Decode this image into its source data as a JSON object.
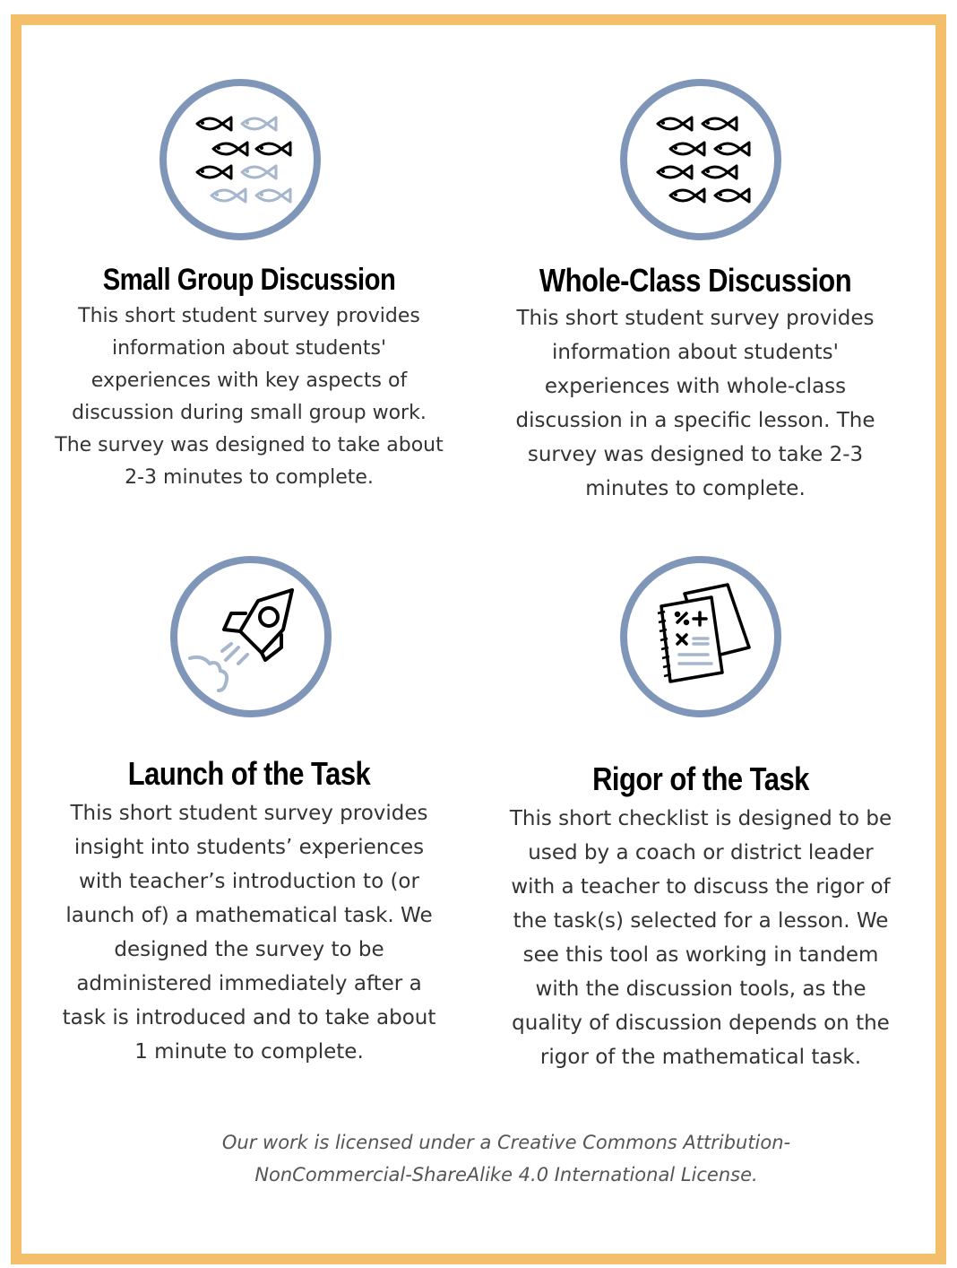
{
  "colors": {
    "border": "#f4bf6b",
    "ring": "#7f96b9",
    "icon_dark": "#000000",
    "icon_light": "#a6b6cc"
  },
  "cards": [
    {
      "icon": "fish-school-icon",
      "title": "Small Group Discussion",
      "lines": [
        "This short student survey provides",
        "information about students'",
        "experiences with key aspects of",
        "discussion during small group work.",
        "The survey was designed to take about",
        "2-3 minutes to complete."
      ]
    },
    {
      "icon": "fish-school-icon",
      "title": "Whole-Class Discussion",
      "lines": [
        "This short student survey provides",
        "information about students'",
        "experiences with whole-class",
        "discussion in a specific lesson. The",
        "survey was designed to take 2-3",
        "minutes to complete."
      ]
    },
    {
      "icon": "rocket-icon",
      "title": "Launch of the Task",
      "lines": [
        "This short student survey provides",
        "insight into students’ experiences",
        "with teacher’s introduction to (or",
        "launch of) a mathematical task. We",
        "designed the survey to be",
        "administered immediately after a",
        "task is introduced and to take about",
        "1 minute to complete."
      ]
    },
    {
      "icon": "math-notebook-icon",
      "title": "Rigor of the Task",
      "lines": [
        "This short checklist is designed to be",
        "used by a coach or district leader",
        "with a teacher to discuss the rigor of",
        "the task(s) selected for a lesson. We",
        "see this tool as working in tandem",
        "with the discussion tools, as the",
        "quality of discussion depends on the",
        "rigor of the mathematical task."
      ]
    }
  ],
  "license": {
    "line1": "Our work is licensed under a Creative Commons Attribution-",
    "line2": "NonCommercial-ShareAlike 4.0 International License."
  }
}
